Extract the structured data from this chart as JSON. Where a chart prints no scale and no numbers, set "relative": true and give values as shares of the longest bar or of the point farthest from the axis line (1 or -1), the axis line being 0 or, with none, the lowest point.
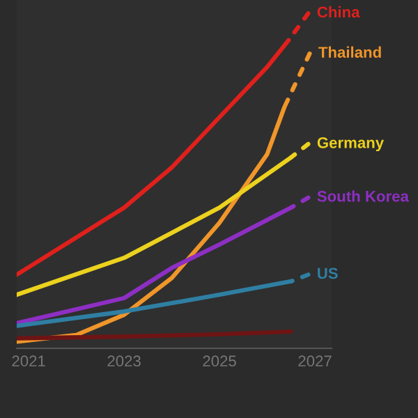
{
  "chart_data": {
    "type": "line",
    "relative": true,
    "xticks": [
      2021,
      2023,
      2025,
      2027
    ],
    "xlim": [
      2020.75,
      2027.35
    ],
    "line_style": "solid",
    "marker": "none",
    "series": [
      {
        "color": "#e0201c",
        "x": [
          2020.75,
          2023,
          2024,
          2025,
          2026,
          2026.45
        ],
        "values": [
          0.22,
          0.42,
          0.54,
          0.69,
          0.84,
          0.92
        ]
      },
      {
        "name": "China",
        "color": "#e0201c",
        "line_style": "dashed",
        "x": [
          2026.45,
          2026.86
        ],
        "values": [
          0.92,
          1.0
        ]
      },
      {
        "color": "#f0962a",
        "x": [
          2020.75,
          2022,
          2023,
          2024,
          2025,
          2026,
          2026.36
        ],
        "values": [
          0.02,
          0.04,
          0.1,
          0.21,
          0.375,
          0.58,
          0.72
        ]
      },
      {
        "name": "Thailand",
        "color": "#f0962a",
        "line_style": "dashed",
        "x": [
          2026.36,
          2026.89
        ],
        "values": [
          0.72,
          0.88
        ]
      },
      {
        "color": "#ecd21e",
        "x": [
          2020.75,
          2023,
          2025,
          2026.5
        ],
        "values": [
          0.16,
          0.27,
          0.42,
          0.57
        ]
      },
      {
        "name": "Germany",
        "color": "#ecd21e",
        "line_style": "dashed",
        "x": [
          2026.5,
          2026.86
        ],
        "values": [
          0.57,
          0.61
        ]
      },
      {
        "color": "#8e2fc4",
        "x": [
          2020.75,
          2023,
          2024,
          2025,
          2026.5
        ],
        "values": [
          0.075,
          0.15,
          0.24,
          0.31,
          0.42
        ]
      },
      {
        "name": "South Korea",
        "color": "#8e2fc4",
        "line_style": "dashed",
        "x": [
          2026.5,
          2026.86
        ],
        "values": [
          0.42,
          0.45
        ]
      },
      {
        "color": "#2f7fa3",
        "x": [
          2020.75,
          2023,
          2025,
          2026.5
        ],
        "values": [
          0.067,
          0.11,
          0.16,
          0.2
        ]
      },
      {
        "name": "US",
        "color": "#2f7fa3",
        "line_style": "dashed",
        "x": [
          2026.5,
          2026.86
        ],
        "values": [
          0.2,
          0.22
        ]
      },
      {
        "color": "#6e1414",
        "x": [
          2020.75,
          2023,
          2025,
          2026.5
        ],
        "values": [
          0.03,
          0.035,
          0.042,
          0.05
        ]
      }
    ]
  }
}
